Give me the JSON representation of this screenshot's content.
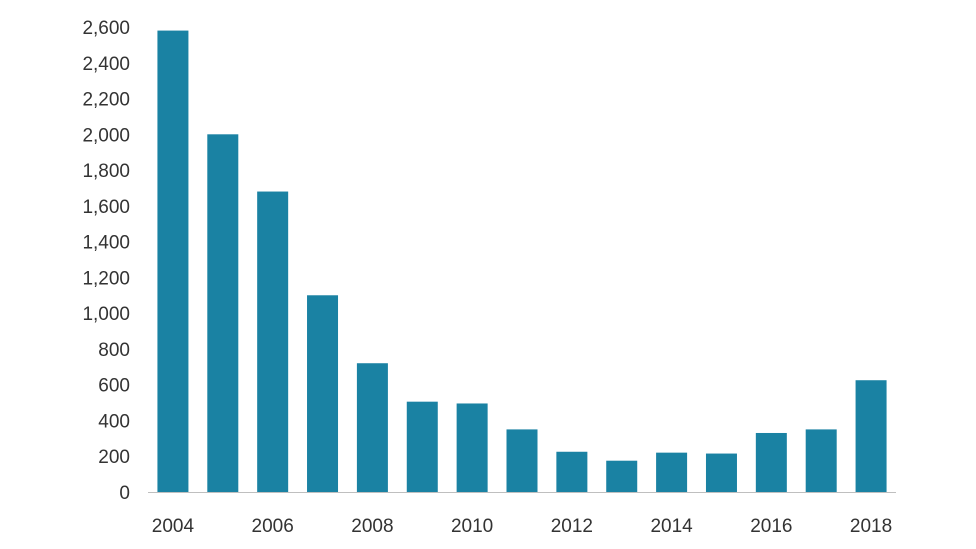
{
  "chart_data": {
    "type": "bar",
    "title": "",
    "xlabel": "",
    "ylabel": "",
    "categories": [
      "2004",
      "2005",
      "2006",
      "2007",
      "2008",
      "2009",
      "2010",
      "2011",
      "2012",
      "2013",
      "2014",
      "2015",
      "2016",
      "2017",
      "2018"
    ],
    "x_tick_labels": [
      "2004",
      "2006",
      "2008",
      "2010",
      "2012",
      "2014",
      "2016",
      "2018"
    ],
    "y_tick_labels": [
      "0",
      "200",
      "400",
      "600",
      "800",
      "1,000",
      "1,200",
      "1,400",
      "1,600",
      "1,800",
      "2,000",
      "2,200",
      "2,400",
      "2,600"
    ],
    "series": [
      {
        "values": [
          2580,
          2000,
          1680,
          1100,
          720,
          505,
          495,
          350,
          225,
          175,
          220,
          215,
          330,
          350,
          625
        ]
      }
    ],
    "ylim": [
      0,
      2600
    ],
    "grid": false,
    "legend": "none",
    "colors": {
      "bar": "#1a82a3",
      "axis": "#bfbfbf",
      "text": "#333333"
    }
  }
}
